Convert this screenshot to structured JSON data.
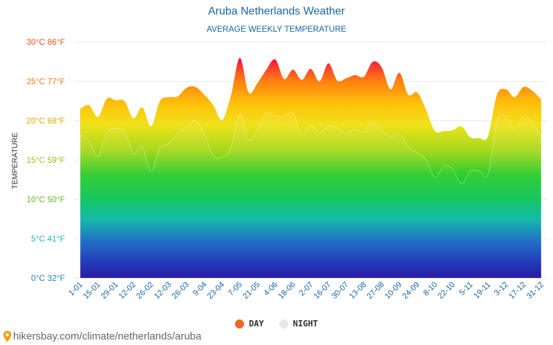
{
  "colors": {
    "day_legend": "#f26522",
    "night_legend": "#e5e9ef",
    "title": "#1565a6",
    "grid": "#e6e6e6"
  },
  "legend": {
    "day": "DAY",
    "night": "NIGHT"
  },
  "source": {
    "text": "hikersbay.com/climate/netherlands/aruba",
    "icon": "map-pin-icon"
  },
  "chart_data": {
    "type": "area",
    "title": "Aruba Netherlands Weather",
    "subtitle": "AVERAGE WEEKLY TEMPERATURE",
    "ylabel": "TEMPERATURE",
    "xlabel": "",
    "ylim": [
      0,
      30
    ],
    "yticks": [
      {
        "value": 0,
        "label": "0°C 32°F",
        "color": "#1f7fc0"
      },
      {
        "value": 5,
        "label": "5°C 41°F",
        "color": "#1fb0bf"
      },
      {
        "value": 10,
        "label": "10°C 50°F",
        "color": "#5cb82a"
      },
      {
        "value": 15,
        "label": "15°C 59°F",
        "color": "#9cbf12"
      },
      {
        "value": 20,
        "label": "20°C 68°F",
        "color": "#e0a600"
      },
      {
        "value": 25,
        "label": "25°C 77°F",
        "color": "#f07a12"
      },
      {
        "value": 30,
        "label": "30°C 86°F",
        "color": "#f0521e"
      }
    ],
    "xtick_labels": [
      "1-01",
      "15-01",
      "29-01",
      "12-02",
      "26-02",
      "12-03",
      "26-03",
      "9-04",
      "23-04",
      "7-05",
      "21-05",
      "4-06",
      "18-06",
      "2-07",
      "16-07",
      "30-07",
      "13-08",
      "27-08",
      "10-09",
      "24-09",
      "8-10",
      "22-10",
      "5-11",
      "19-11",
      "3-12",
      "17-12",
      "31-12"
    ],
    "series": [
      {
        "name": "DAY",
        "values": [
          21.5,
          22.0,
          20.5,
          22.8,
          22.6,
          22.5,
          20.3,
          21.7,
          19.3,
          22.5,
          23.0,
          23.1,
          24.2,
          24.3,
          23.3,
          22.0,
          20.1,
          23.2,
          28.0,
          23.6,
          24.8,
          26.5,
          27.8,
          25.3,
          26.5,
          25.2,
          26.6,
          25.0,
          27.3,
          25.1,
          25.4,
          25.8,
          25.6,
          27.5,
          26.8,
          24.0,
          26.1,
          23.3,
          23.6,
          21.4,
          18.7,
          18.7,
          18.8,
          19.3,
          17.9,
          17.8,
          18.0,
          23.3,
          24.0,
          23.0,
          24.3,
          23.8,
          22.7
        ]
      },
      {
        "name": "NIGHT",
        "values": [
          18.2,
          17.4,
          15.5,
          18.5,
          19.0,
          18.6,
          15.8,
          16.8,
          13.6,
          16.6,
          17.1,
          18.5,
          19.2,
          20.0,
          18.3,
          15.6,
          15.4,
          16.6,
          20.9,
          17.6,
          18.9,
          21.0,
          20.6,
          20.5,
          21.0,
          18.2,
          19.4,
          18.5,
          19.3,
          19.1,
          18.4,
          18.9,
          18.6,
          19.9,
          18.8,
          17.9,
          18.3,
          16.7,
          15.9,
          15.1,
          12.8,
          14.2,
          13.9,
          12.0,
          13.6,
          13.6,
          13.2,
          19.9,
          20.6,
          18.9,
          20.6,
          19.8,
          17.9
        ]
      }
    ],
    "legend_position": "bottom-center",
    "grid": true
  }
}
